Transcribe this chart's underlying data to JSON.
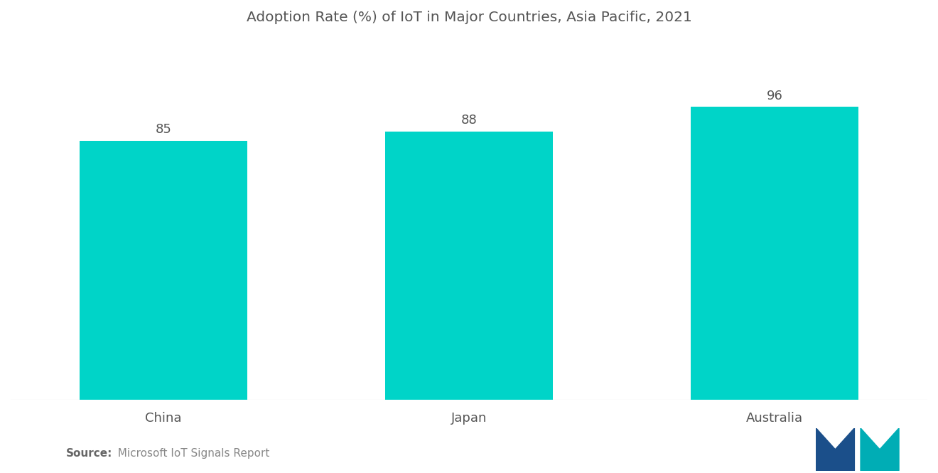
{
  "title": "Adoption Rate (%) of IoT in Major Countries, Asia Pacific, 2021",
  "categories": [
    "China",
    "Japan",
    "Australia"
  ],
  "values": [
    85,
    88,
    96
  ],
  "bar_color": "#00D4C8",
  "background_color": "#ffffff",
  "title_fontsize": 14.5,
  "label_fontsize": 13,
  "value_fontsize": 13,
  "ylim": [
    0,
    115
  ],
  "bar_width": 0.55,
  "x_positions": [
    0.5,
    1.5,
    2.5
  ],
  "xlim": [
    0,
    3.0
  ],
  "source_bold": "Source:",
  "source_text": "  Microsoft IoT Signals Report",
  "source_fontsize": 11,
  "logo_left_color": "#1B4F8A",
  "logo_right_color": "#00ADB5"
}
